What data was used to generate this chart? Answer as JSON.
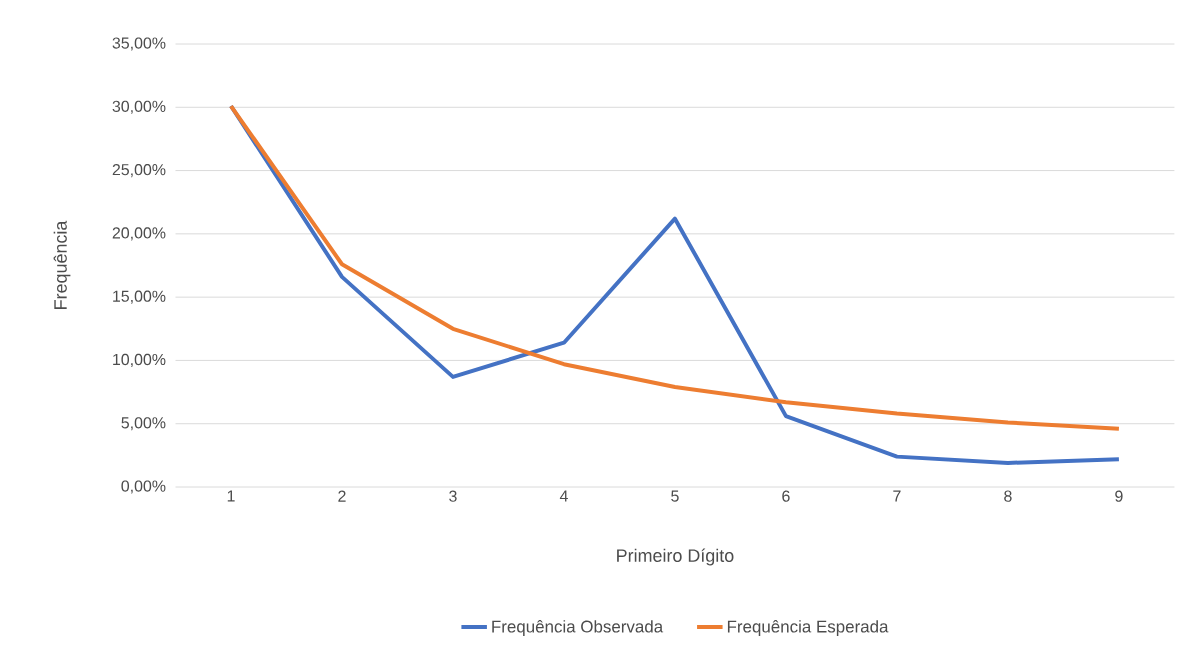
{
  "chart_data": {
    "type": "line",
    "xlabel": "Primeiro Dígito",
    "ylabel": "Frequência",
    "categories": [
      "1",
      "2",
      "3",
      "4",
      "5",
      "6",
      "7",
      "8",
      "9"
    ],
    "series": [
      {
        "name": "Frequência Observada",
        "color": "#4472c4",
        "values": [
          30.1,
          16.6,
          8.7,
          11.4,
          21.2,
          5.6,
          2.4,
          1.9,
          2.2
        ]
      },
      {
        "name": "Frequência Esperada",
        "color": "#ed7d31",
        "values": [
          30.1,
          17.6,
          12.5,
          9.7,
          7.9,
          6.7,
          5.8,
          5.1,
          4.6
        ]
      }
    ],
    "ylim": [
      0,
      35
    ],
    "yticks": [
      {
        "value": 0,
        "label": "0,00%"
      },
      {
        "value": 5,
        "label": "5,00%"
      },
      {
        "value": 10,
        "label": "10,00%"
      },
      {
        "value": 15,
        "label": "15,00%"
      },
      {
        "value": 20,
        "label": "20,00%"
      },
      {
        "value": 25,
        "label": "25,00%"
      },
      {
        "value": 30,
        "label": "30,00%"
      },
      {
        "value": 35,
        "label": "35,00%"
      }
    ],
    "grid": "y",
    "legend": "bottom",
    "marker": "none",
    "line_style": "solid"
  }
}
